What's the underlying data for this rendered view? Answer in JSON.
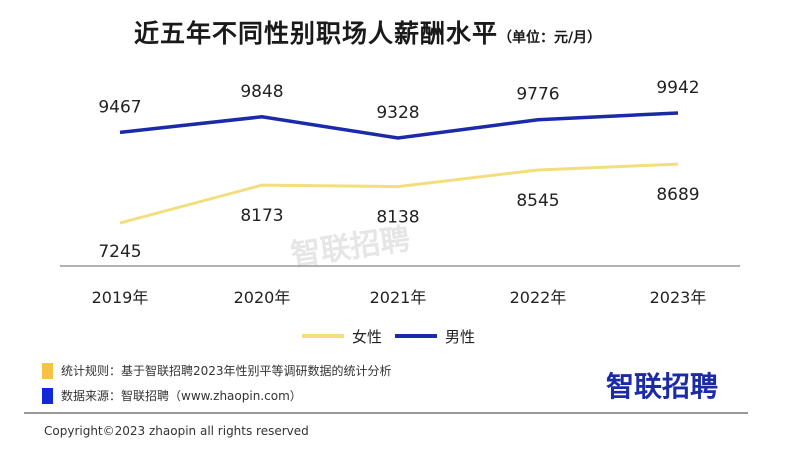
{
  "chart_data": {
    "type": "line",
    "title": "近五年不同性别职场人薪酬水平",
    "unit": "（单位：元/月）",
    "categories": [
      "2019年",
      "2020年",
      "2021年",
      "2022年",
      "2023年"
    ],
    "series": [
      {
        "name": "女性",
        "color": "#f2de7d",
        "values": [
          7245,
          8173,
          8138,
          8545,
          8689
        ]
      },
      {
        "name": "男性",
        "color": "#1b2ba8",
        "values": [
          9467,
          9848,
          9328,
          9776,
          9942
        ]
      }
    ],
    "grid": false,
    "legend": "bottom"
  },
  "footer": {
    "rule_label": "统计规则：基于智联招聘2023年性别平等调研数据的统计分析",
    "rule_color": "#f5c242",
    "source_label": "数据来源：智联招聘（www.zhaopin.com）",
    "source_color": "#1029d8",
    "logo": "智联招聘",
    "watermark": "智联招聘",
    "copyright": "Copyright©2023 zhaopin all rights reserved"
  }
}
